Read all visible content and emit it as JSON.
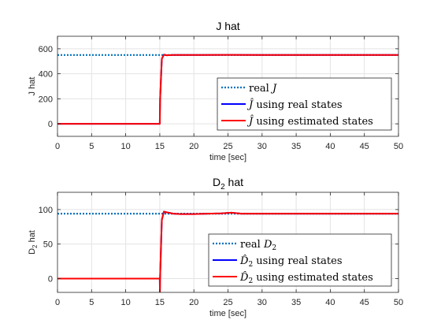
{
  "chart_data": [
    {
      "type": "line",
      "title": "J hat",
      "xlabel": "time [sec]",
      "ylabel": "J hat",
      "xlim": [
        0,
        50
      ],
      "ylim": [
        -100,
        700
      ],
      "xticks": [
        0,
        5,
        10,
        15,
        20,
        25,
        30,
        35,
        40,
        45,
        50
      ],
      "yticks": [
        0,
        200,
        400,
        600
      ],
      "grid": true,
      "legend_position": "right",
      "series": [
        {
          "name": "real J",
          "legend": {
            "pre": "real ",
            "sym": "J",
            "post": ""
          },
          "style": "dotted",
          "color": "#0072BD",
          "x": [
            0,
            50
          ],
          "y": [
            550,
            550
          ]
        },
        {
          "name": "Ĵ using real states",
          "legend": {
            "pre": "",
            "sym": "Ĵ",
            "post": " using real states"
          },
          "style": "solid",
          "color": "#0000FF",
          "x": [
            0,
            15,
            15.05,
            15.3,
            15.6,
            16,
            17,
            20,
            25,
            30,
            40,
            50
          ],
          "y": [
            0,
            0,
            200,
            520,
            553,
            548,
            550,
            550,
            551,
            550,
            550,
            550
          ]
        },
        {
          "name": "Ĵ using estimated states",
          "legend": {
            "pre": "",
            "sym": "Ĵ",
            "post": " using estimated states"
          },
          "style": "solid",
          "color": "#FF0000",
          "x": [
            0,
            15,
            15.05,
            15.3,
            15.6,
            16,
            17,
            20,
            25,
            30,
            40,
            50
          ],
          "y": [
            0,
            0,
            200,
            520,
            553,
            548,
            550,
            550,
            551,
            550,
            550,
            550
          ]
        }
      ]
    },
    {
      "type": "line",
      "title": "D2 hat",
      "title_parts": {
        "main": "D",
        "sub": "2",
        "post": " hat"
      },
      "xlabel": "time [sec]",
      "ylabel": "D2 hat",
      "ylabel_parts": {
        "main": "D",
        "sub": "2",
        "post": " hat"
      },
      "xlim": [
        0,
        50
      ],
      "ylim": [
        -20,
        125
      ],
      "xticks": [
        0,
        5,
        10,
        15,
        20,
        25,
        30,
        35,
        40,
        45,
        50
      ],
      "yticks": [
        0,
        50,
        100
      ],
      "grid": true,
      "legend_position": "right",
      "series": [
        {
          "name": "real D2",
          "legend": {
            "pre": "real ",
            "sym": "D",
            "sub": "2",
            "post": ""
          },
          "style": "dotted",
          "color": "#0072BD",
          "x": [
            0,
            50
          ],
          "y": [
            94,
            94
          ]
        },
        {
          "name": "D̂2 using real states",
          "legend": {
            "pre": "",
            "sym": "D̂",
            "sub": "2",
            "post": " using real states"
          },
          "style": "solid",
          "color": "#0000FF",
          "x": [
            0,
            15,
            15.02,
            15.04,
            15.3,
            15.6,
            16,
            17,
            18,
            20,
            22,
            24,
            25.5,
            27,
            30,
            40,
            50
          ],
          "y": [
            0,
            0,
            -20,
            0,
            85,
            97,
            96,
            94,
            93.5,
            93.5,
            94,
            94.5,
            95.5,
            94,
            94,
            94,
            94
          ]
        },
        {
          "name": "D̂2 using estimated states",
          "legend": {
            "pre": "",
            "sym": "D̂",
            "sub": "2",
            "post": " using estimated states"
          },
          "style": "solid",
          "color": "#FF0000",
          "x": [
            0,
            15,
            15.02,
            15.04,
            15.3,
            15.6,
            16,
            17,
            18,
            20,
            22,
            24,
            25.5,
            27,
            30,
            40,
            50
          ],
          "y": [
            0,
            0,
            -20,
            0,
            85,
            97,
            96,
            94,
            93.5,
            93.5,
            94,
            94.5,
            95.5,
            94,
            94,
            94,
            94
          ]
        }
      ]
    }
  ]
}
